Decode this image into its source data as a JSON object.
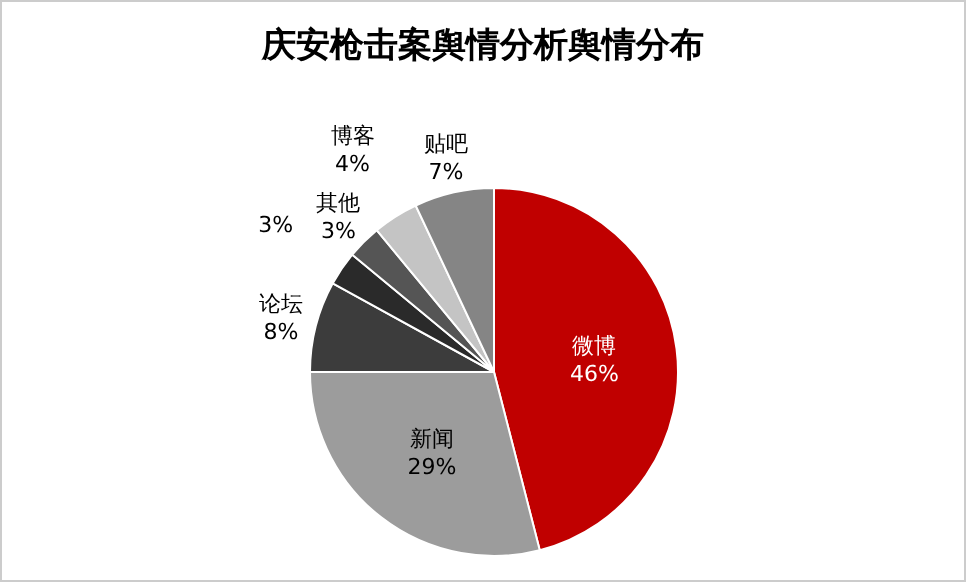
{
  "chart_data": {
    "type": "pie",
    "title": "庆安枪击案舆情分析舆情分布",
    "categories": [
      "微博",
      "新闻",
      "论坛",
      null,
      "其他",
      "博客",
      "贴吧"
    ],
    "values": [
      46,
      29,
      8,
      3,
      3,
      4,
      7
    ],
    "value_labels": [
      "46%",
      "29%",
      "8%",
      "3%",
      "3%",
      "4%",
      "7%"
    ],
    "colors": [
      "#c00000",
      "#9c9c9c",
      "#3c3c3c",
      "#2a2a2a",
      "#555555",
      "#c4c4c4",
      "#858585"
    ],
    "legend": false
  }
}
